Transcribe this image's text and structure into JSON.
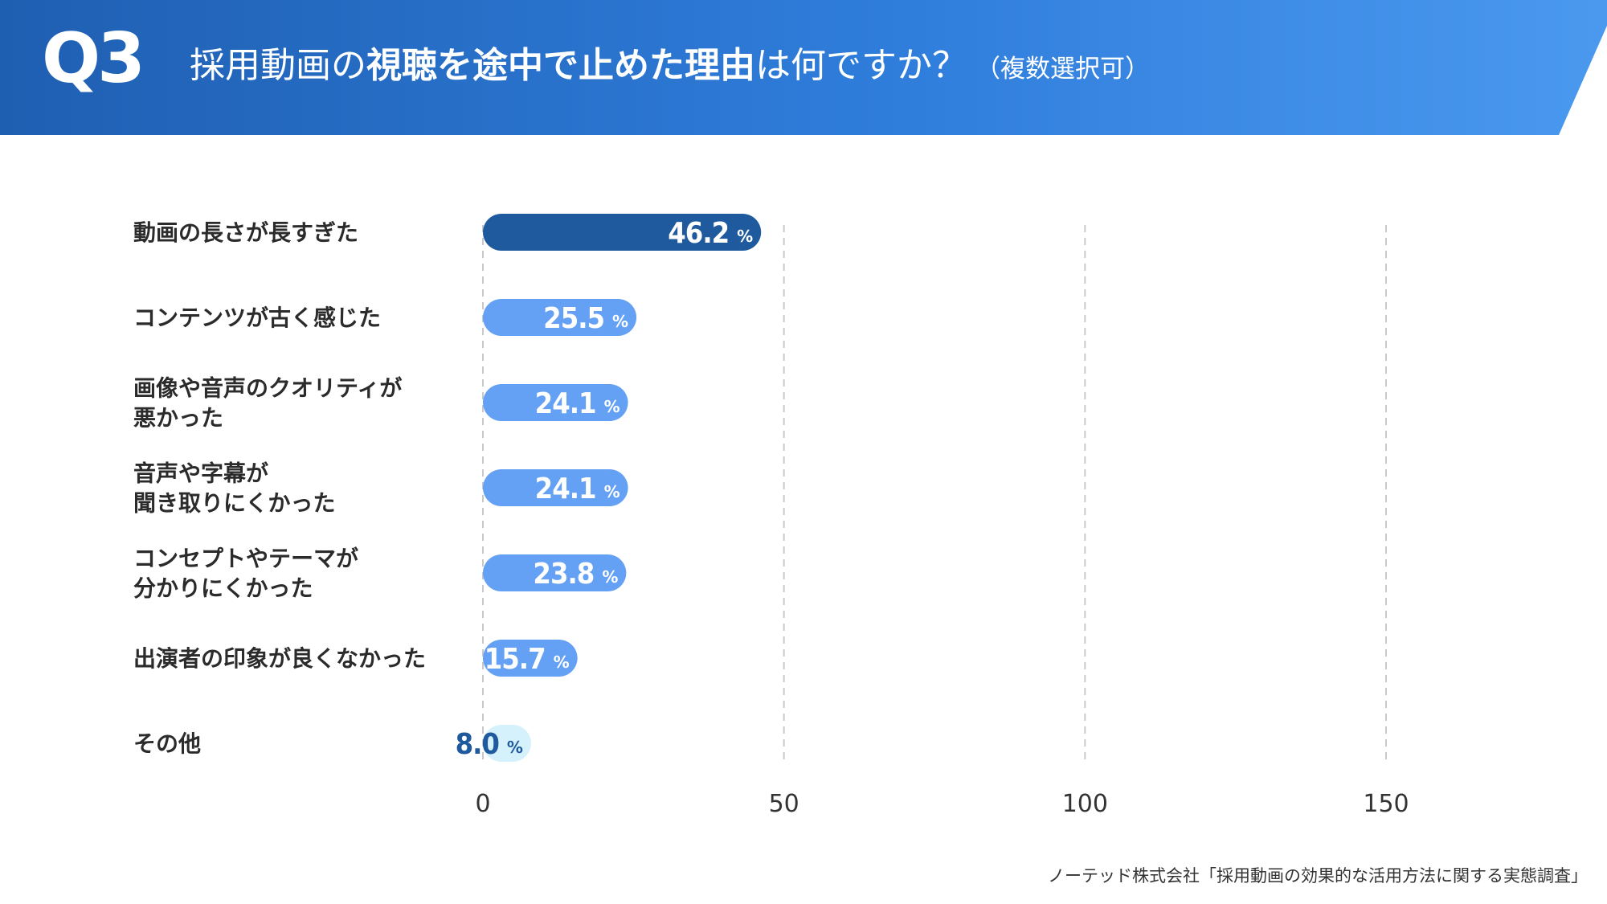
{
  "header": {
    "q_number": "Q3",
    "title_part1": "採用動画の",
    "title_part2": "視聴を途中で止めた理由",
    "title_part3": "は何ですか？",
    "title_note": "（複数選択可）"
  },
  "footer": {
    "source": "ノーテッド株式会社「採用動画の効果的な活用方法に関する実態調査」"
  },
  "colors": {
    "banner": "#2e7bd8",
    "bar_top": "#1f5a9e",
    "bar_mid": "#64a1f5",
    "bar_low": "#d5f1fc",
    "label_low": "#1f5a9e"
  },
  "chart_data": {
    "type": "bar",
    "orientation": "horizontal",
    "categories": [
      [
        "動画の長さが長すぎた"
      ],
      [
        "コンテンツが古く感じた"
      ],
      [
        "画像や音声のクオリティが",
        "悪かった"
      ],
      [
        "音声や字幕が",
        "聞き取りにくかった"
      ],
      [
        "コンセプトやテーマが",
        "分かりにくかった"
      ],
      [
        "出演者の印象が良くなかった"
      ],
      [
        "その他"
      ]
    ],
    "values": [
      46.2,
      25.5,
      24.1,
      24.1,
      23.8,
      15.7,
      8.0
    ],
    "value_labels": [
      "46.2",
      "25.5",
      "24.1",
      "24.1",
      "23.8",
      "15.7",
      "8.0"
    ],
    "unit": "%",
    "xlim": [
      0,
      150
    ],
    "x_ticks": [
      "0",
      "50",
      "100",
      "150"
    ],
    "grid": true
  }
}
